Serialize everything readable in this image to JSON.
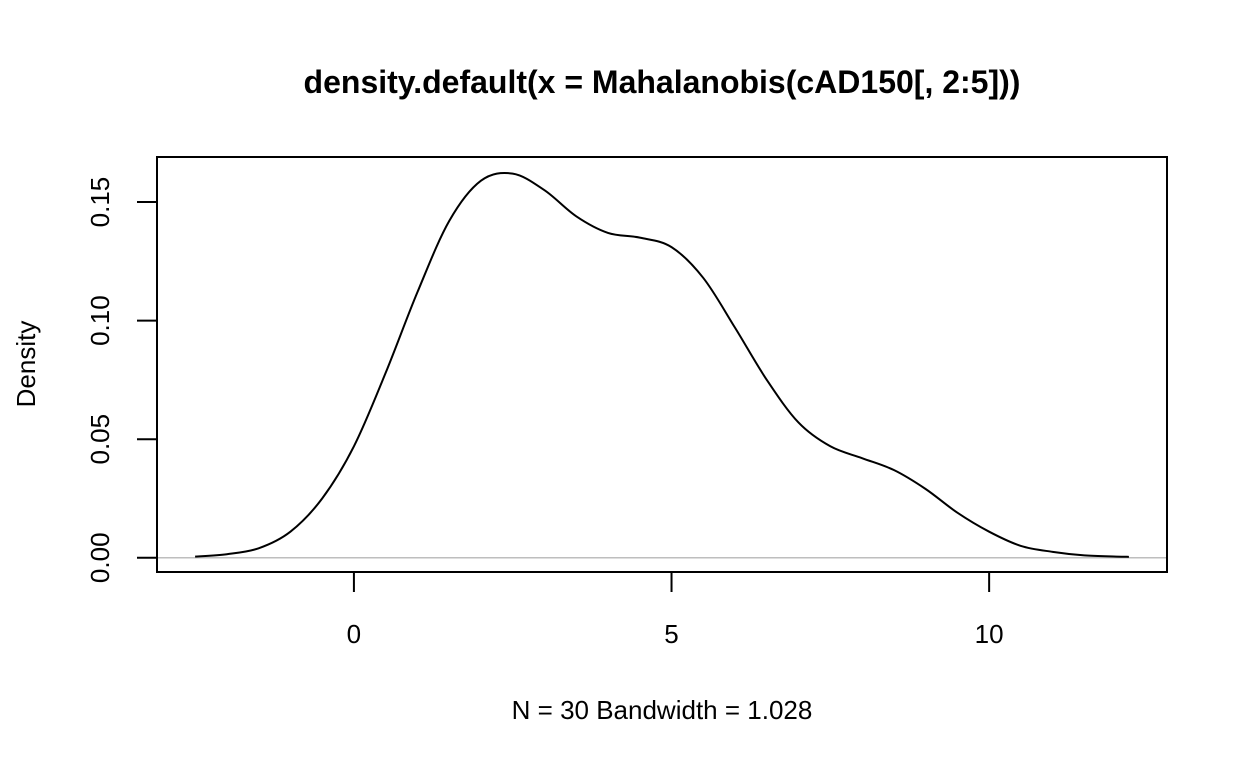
{
  "chart_data": {
    "type": "line",
    "title": "density.default(x = Mahalanobis(cAD150[, 2:5]))",
    "xlabel": "N = 30   Bandwidth = 1.028",
    "ylabel": "Density",
    "xlim": [
      -3.1,
      12.8
    ],
    "ylim": [
      -0.006,
      0.169
    ],
    "x_ticks": [
      0,
      5,
      10
    ],
    "x_tick_labels": [
      "0",
      "5",
      "10"
    ],
    "y_ticks": [
      0.0,
      0.05,
      0.1,
      0.15
    ],
    "y_tick_labels": [
      "0.00",
      "0.05",
      "0.10",
      "0.15"
    ],
    "baseline_y": 0,
    "baseline_color": "#bebebe",
    "line_color": "#000000",
    "grid": false,
    "legend": "none",
    "series": [
      {
        "x": [
          -2.5,
          -2.0,
          -1.5,
          -1.0,
          -0.5,
          0.0,
          0.5,
          1.0,
          1.5,
          2.0,
          2.5,
          3.0,
          3.5,
          4.0,
          4.5,
          5.0,
          5.5,
          6.0,
          6.5,
          7.0,
          7.5,
          8.0,
          8.5,
          9.0,
          9.5,
          10.0,
          10.5,
          11.0,
          11.5,
          12.0,
          12.2
        ],
        "values": [
          0.0005,
          0.0015,
          0.004,
          0.011,
          0.025,
          0.047,
          0.078,
          0.112,
          0.142,
          0.159,
          0.162,
          0.155,
          0.144,
          0.137,
          0.135,
          0.131,
          0.118,
          0.097,
          0.075,
          0.057,
          0.047,
          0.042,
          0.037,
          0.029,
          0.019,
          0.011,
          0.005,
          0.0025,
          0.001,
          0.0005,
          0.0004
        ]
      }
    ]
  }
}
